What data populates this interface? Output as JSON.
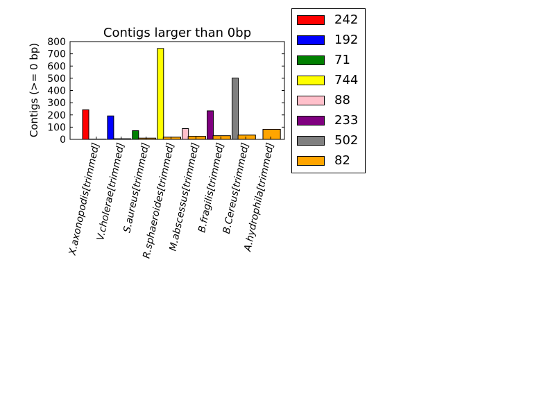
{
  "chart_data": {
    "type": "bar",
    "title": "Contigs larger than 0bp",
    "xlabel": "",
    "ylabel": "Contigs (>= 0 bp)",
    "ylim": [
      0,
      800
    ],
    "yticks": [
      0,
      100,
      200,
      300,
      400,
      500,
      600,
      700,
      800
    ],
    "grid": false,
    "legend_position": "outside-right",
    "categories": [
      "X.axonopodis[trimmed]",
      "V.cholerae[trimmed]",
      "S.aureus[trimmed]",
      "R.sphaeroides[trimmed]",
      "M.abscessus[trimmed]",
      "B.fragilis[trimmed]",
      "B.Cereus[trimmed]",
      "A.hydrophila[trimmed]"
    ],
    "series": [
      {
        "name": "242",
        "color": "#ff0000",
        "values": [
          242,
          0,
          0,
          0,
          0,
          0,
          0,
          0
        ]
      },
      {
        "name": "192",
        "color": "#0000ff",
        "values": [
          0,
          192,
          0,
          0,
          0,
          0,
          0,
          0
        ]
      },
      {
        "name": "71",
        "color": "#008000",
        "values": [
          0,
          0,
          71,
          0,
          0,
          0,
          0,
          0
        ]
      },
      {
        "name": "744",
        "color": "#ffff00",
        "values": [
          0,
          0,
          0,
          744,
          0,
          0,
          0,
          0
        ]
      },
      {
        "name": "88",
        "color": "#ffc0cb",
        "values": [
          0,
          0,
          0,
          0,
          88,
          0,
          0,
          0
        ]
      },
      {
        "name": "233",
        "color": "#800080",
        "values": [
          0,
          0,
          0,
          0,
          0,
          233,
          0,
          0
        ]
      },
      {
        "name": "502",
        "color": "#808080",
        "values": [
          0,
          0,
          0,
          0,
          0,
          0,
          502,
          0
        ]
      },
      {
        "name": "82",
        "color": "#ffa500",
        "values": [
          2,
          5,
          10,
          18,
          25,
          30,
          35,
          82
        ]
      }
    ]
  }
}
